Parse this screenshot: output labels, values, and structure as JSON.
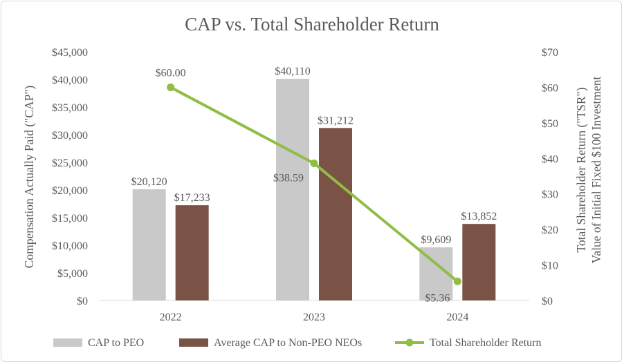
{
  "chart_data": {
    "type": "bar",
    "title": "CAP vs. Total Shareholder Return",
    "categories": [
      "2022",
      "2023",
      "2024"
    ],
    "series": [
      {
        "name": "CAP to PEO",
        "kind": "bar",
        "axis": "left",
        "color": "#c9c9c9",
        "values": [
          20120,
          40110,
          9609
        ],
        "labels": [
          "$20,120",
          "$40,110",
          "$9,609"
        ]
      },
      {
        "name": "Average CAP to Non-PEO NEOs",
        "kind": "bar",
        "axis": "left",
        "color": "#7b5246",
        "values": [
          17233,
          31212,
          13852
        ],
        "labels": [
          "$17,233",
          "$31,212",
          "$13,852"
        ]
      },
      {
        "name": "Total Shareholder Return",
        "kind": "line",
        "axis": "right",
        "color": "#8fbd45",
        "values": [
          60.0,
          38.59,
          5.36
        ],
        "labels": [
          "$60.00",
          "$38.59",
          "$5.36"
        ]
      }
    ],
    "y_left": {
      "label": "Compensation Actually Paid (\"CAP\")",
      "ylim": [
        0,
        45000
      ],
      "ticks": [
        "$0",
        "$5,000",
        "$10,000",
        "$15,000",
        "$20,000",
        "$25,000",
        "$30,000",
        "$35,000",
        "$40,000",
        "$45,000"
      ]
    },
    "y_right": {
      "label_line1": "Total Shareholder Return (\"TSR\")",
      "label_line2": "Value of Initial Fixed $100 Investment",
      "ylim": [
        0,
        70
      ],
      "ticks": [
        "$0",
        "$10",
        "$20",
        "$30",
        "$40",
        "$50",
        "$60",
        "$70"
      ]
    },
    "grid": false,
    "legend_position": "bottom"
  }
}
